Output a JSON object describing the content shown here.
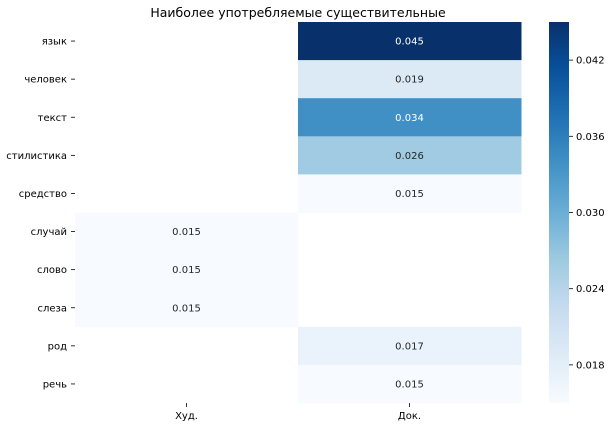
{
  "chart_data": {
    "type": "heatmap",
    "title": "Наиболее употребляемые существительные",
    "xlabel": "",
    "ylabel": "",
    "rows": [
      "язык",
      "человек",
      "текст",
      "стилистика",
      "средство",
      "случай",
      "слово",
      "слеза",
      "род",
      "речь"
    ],
    "columns": [
      "Худ.",
      "Док."
    ],
    "values": [
      [
        null,
        0.045
      ],
      [
        null,
        0.019
      ],
      [
        null,
        0.034
      ],
      [
        null,
        0.026
      ],
      [
        null,
        0.015
      ],
      [
        0.015,
        null
      ],
      [
        0.015,
        null
      ],
      [
        0.015,
        null
      ],
      [
        null,
        0.017
      ],
      [
        null,
        0.015
      ]
    ],
    "value_labels": [
      [
        null,
        "0.045"
      ],
      [
        null,
        "0.019"
      ],
      [
        null,
        "0.034"
      ],
      [
        null,
        "0.026"
      ],
      [
        null,
        "0.015"
      ],
      [
        "0.015",
        null
      ],
      [
        "0.015",
        null
      ],
      [
        "0.015",
        null
      ],
      [
        null,
        "0.017"
      ],
      [
        null,
        "0.015"
      ]
    ],
    "colormap": "Blues",
    "colormap_stops": [
      "#f7fbff",
      "#deebf7",
      "#c6dbef",
      "#9ecae1",
      "#6baed6",
      "#4292c6",
      "#2171b5",
      "#08519c",
      "#08306b"
    ],
    "vmin": 0.015,
    "vmax": 0.045,
    "colorbar_ticks": [
      "0.018",
      "0.024",
      "0.030",
      "0.036",
      "0.042"
    ],
    "colorbar_tick_values": [
      0.018,
      0.024,
      0.03,
      0.036,
      0.042
    ],
    "grid": false
  }
}
